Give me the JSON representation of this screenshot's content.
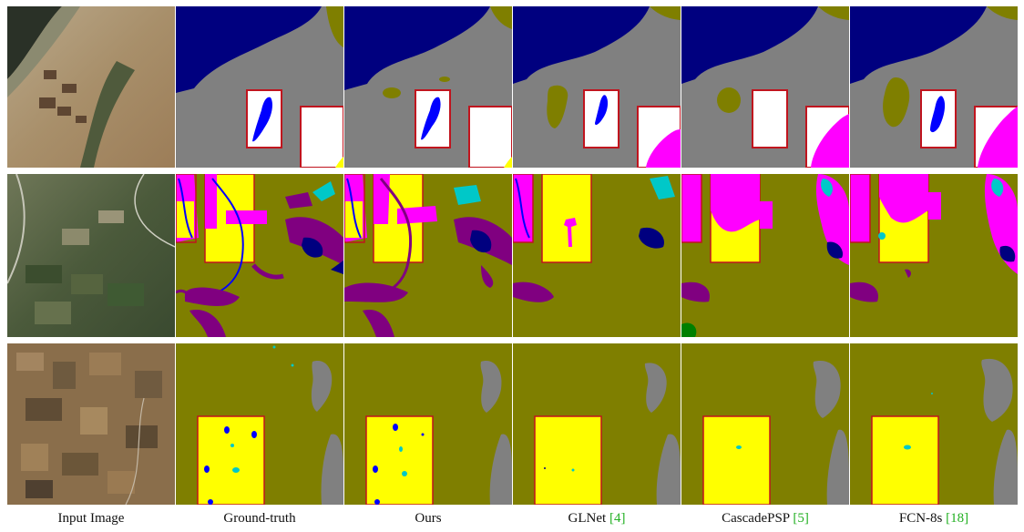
{
  "figure": {
    "columns": [
      {
        "label": "Input Image",
        "ref": ""
      },
      {
        "label": "Ground-truth",
        "ref": ""
      },
      {
        "label": "Ours",
        "ref": ""
      },
      {
        "label": "GLNet ",
        "ref": "[4]"
      },
      {
        "label": "CascadePSP ",
        "ref": "[5]"
      },
      {
        "label": "FCN-8s ",
        "ref": "[18]"
      }
    ],
    "palette": {
      "water": "#00007f",
      "grey": "#808080",
      "agriculture": "#7f7f00",
      "magenta": "#ff00ff",
      "yellow": "#ffff00",
      "blue": "#0000ff",
      "cyan": "#00c8c8",
      "purple": "#800080",
      "zoom_box_border": "#c0141e"
    }
  }
}
